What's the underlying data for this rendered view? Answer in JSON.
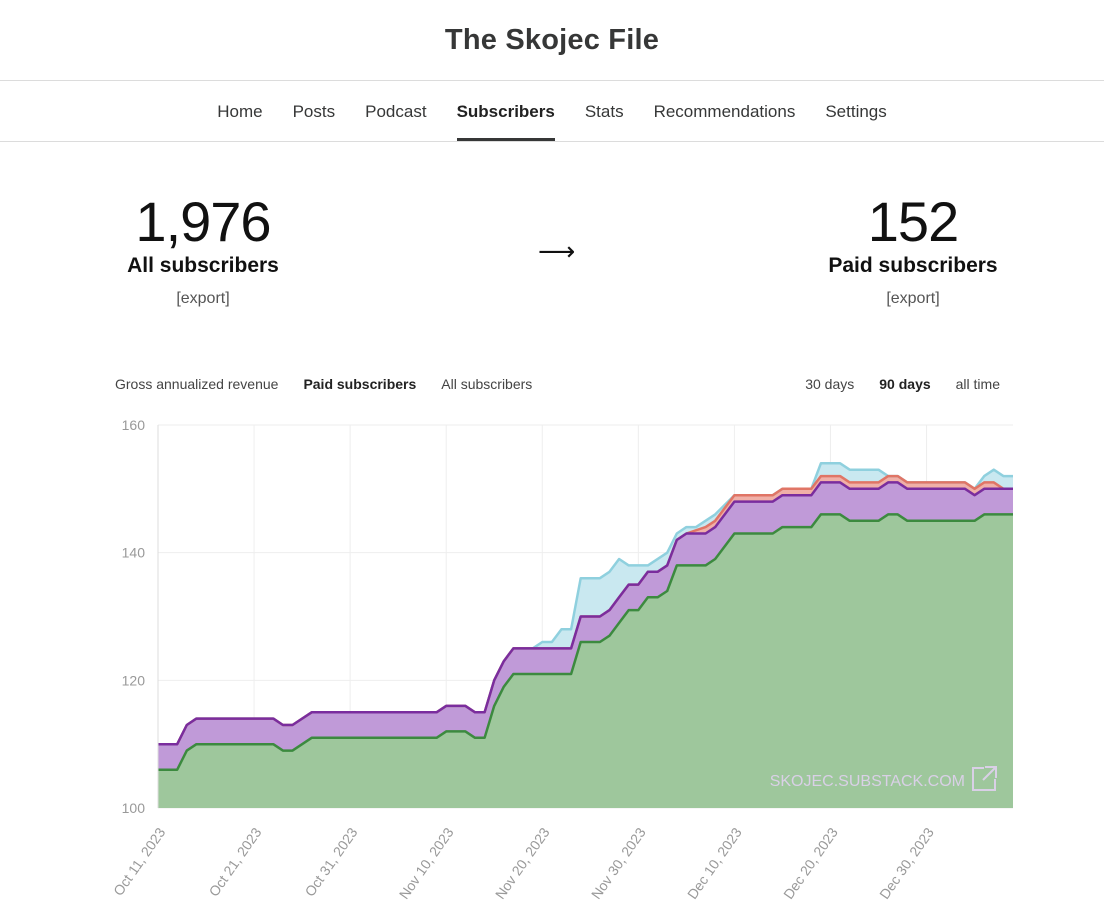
{
  "header": {
    "title": "The Skojec File"
  },
  "nav": {
    "items": [
      {
        "label": "Home",
        "active": false
      },
      {
        "label": "Posts",
        "active": false
      },
      {
        "label": "Podcast",
        "active": false
      },
      {
        "label": "Subscribers",
        "active": true
      },
      {
        "label": "Stats",
        "active": false
      },
      {
        "label": "Recommendations",
        "active": false
      },
      {
        "label": "Settings",
        "active": false
      }
    ]
  },
  "summary": {
    "all": {
      "value": "1,976",
      "label": "All subscribers",
      "export": "[export]"
    },
    "arrow": "⟶",
    "paid": {
      "value": "152",
      "label": "Paid subscribers",
      "export": "[export]"
    }
  },
  "metric_tabs": [
    {
      "label": "Gross annualized revenue",
      "active": false
    },
    {
      "label": "Paid subscribers",
      "active": true
    },
    {
      "label": "All subscribers",
      "active": false
    }
  ],
  "range_tabs": [
    {
      "label": "30 days",
      "active": false
    },
    {
      "label": "90 days",
      "active": true
    },
    {
      "label": "all time",
      "active": false
    }
  ],
  "colors": {
    "green_fill": "#9ec79c",
    "green_line": "#3c8a3f",
    "purple_fill": "#c09ad8",
    "purple_line": "#7a2d9e",
    "red_fill": "#f0b0a8",
    "red_line": "#e07566",
    "blue_fill": "#c9e8f0",
    "blue_line": "#8fd0de"
  },
  "chart_data": {
    "type": "area",
    "stacked": true,
    "ylim": [
      100,
      160
    ],
    "yticks": [
      100,
      120,
      140,
      160
    ],
    "grid": true,
    "xtick_labels": [
      "Oct 11, 2023",
      "Oct 21, 2023",
      "Oct 31, 2023",
      "Nov 10, 2023",
      "Nov 20, 2023",
      "Nov 30, 2023",
      "Dec 10, 2023",
      "Dec 20, 2023",
      "Dec 30, 2023"
    ],
    "x_start": "2023-10-11",
    "x_end": "2024-01-08",
    "watermark": "SKOJEC.SUBSTACK.COM",
    "layer_tops": [
      {
        "color": "green",
        "points": [
          [
            "2023-10-11",
            106
          ],
          [
            "2023-10-13",
            106
          ],
          [
            "2023-10-14",
            109
          ],
          [
            "2023-10-15",
            110
          ],
          [
            "2023-10-23",
            110
          ],
          [
            "2023-10-24",
            109
          ],
          [
            "2023-10-25",
            109
          ],
          [
            "2023-10-27",
            111
          ],
          [
            "2023-11-09",
            111
          ],
          [
            "2023-11-10",
            112
          ],
          [
            "2023-11-12",
            112
          ],
          [
            "2023-11-13",
            111
          ],
          [
            "2023-11-14",
            111
          ],
          [
            "2023-11-15",
            116
          ],
          [
            "2023-11-16",
            119
          ],
          [
            "2023-11-17",
            121
          ],
          [
            "2023-11-23",
            121
          ],
          [
            "2023-11-24",
            126
          ],
          [
            "2023-11-26",
            126
          ],
          [
            "2023-11-27",
            127
          ],
          [
            "2023-11-28",
            129
          ],
          [
            "2023-11-29",
            131
          ],
          [
            "2023-11-30",
            131
          ],
          [
            "2023-12-01",
            133
          ],
          [
            "2023-12-02",
            133
          ],
          [
            "2023-12-03",
            134
          ],
          [
            "2023-12-04",
            138
          ],
          [
            "2023-12-07",
            138
          ],
          [
            "2023-12-08",
            139
          ],
          [
            "2023-12-10",
            143
          ],
          [
            "2023-12-14",
            143
          ],
          [
            "2023-12-15",
            144
          ],
          [
            "2023-12-18",
            144
          ],
          [
            "2023-12-19",
            146
          ],
          [
            "2023-12-21",
            146
          ],
          [
            "2023-12-22",
            145
          ],
          [
            "2023-12-25",
            145
          ],
          [
            "2023-12-26",
            146
          ],
          [
            "2023-12-27",
            146
          ],
          [
            "2023-12-28",
            145
          ],
          [
            "2024-01-04",
            145
          ],
          [
            "2024-01-05",
            146
          ],
          [
            "2024-01-08",
            146
          ]
        ]
      },
      {
        "color": "purple",
        "points": [
          [
            "2023-10-11",
            110
          ],
          [
            "2023-10-13",
            110
          ],
          [
            "2023-10-14",
            113
          ],
          [
            "2023-10-15",
            114
          ],
          [
            "2023-10-23",
            114
          ],
          [
            "2023-10-24",
            113
          ],
          [
            "2023-10-25",
            113
          ],
          [
            "2023-10-27",
            115
          ],
          [
            "2023-11-09",
            115
          ],
          [
            "2023-11-10",
            116
          ],
          [
            "2023-11-12",
            116
          ],
          [
            "2023-11-13",
            115
          ],
          [
            "2023-11-14",
            115
          ],
          [
            "2023-11-15",
            120
          ],
          [
            "2023-11-16",
            123
          ],
          [
            "2023-11-17",
            125
          ],
          [
            "2023-11-23",
            125
          ],
          [
            "2023-11-24",
            130
          ],
          [
            "2023-11-26",
            130
          ],
          [
            "2023-11-27",
            131
          ],
          [
            "2023-11-28",
            133
          ],
          [
            "2023-11-29",
            135
          ],
          [
            "2023-11-30",
            135
          ],
          [
            "2023-12-01",
            137
          ],
          [
            "2023-12-02",
            137
          ],
          [
            "2023-12-03",
            138
          ],
          [
            "2023-12-04",
            142
          ],
          [
            "2023-12-05",
            143
          ],
          [
            "2023-12-07",
            143
          ],
          [
            "2023-12-08",
            144
          ],
          [
            "2023-12-10",
            148
          ],
          [
            "2023-12-14",
            148
          ],
          [
            "2023-12-15",
            149
          ],
          [
            "2023-12-18",
            149
          ],
          [
            "2023-12-19",
            151
          ],
          [
            "2023-12-21",
            151
          ],
          [
            "2023-12-22",
            150
          ],
          [
            "2023-12-25",
            150
          ],
          [
            "2023-12-26",
            151
          ],
          [
            "2023-12-27",
            151
          ],
          [
            "2023-12-28",
            150
          ],
          [
            "2024-01-03",
            150
          ],
          [
            "2024-01-04",
            149
          ],
          [
            "2024-01-05",
            150
          ],
          [
            "2024-01-08",
            150
          ]
        ]
      },
      {
        "color": "red",
        "points": [
          [
            "2023-10-11",
            110
          ],
          [
            "2023-10-13",
            110
          ],
          [
            "2023-10-14",
            113
          ],
          [
            "2023-10-15",
            114
          ],
          [
            "2023-10-23",
            114
          ],
          [
            "2023-10-24",
            113
          ],
          [
            "2023-10-25",
            113
          ],
          [
            "2023-10-27",
            115
          ],
          [
            "2023-11-09",
            115
          ],
          [
            "2023-11-10",
            116
          ],
          [
            "2023-11-12",
            116
          ],
          [
            "2023-11-13",
            115
          ],
          [
            "2023-11-14",
            115
          ],
          [
            "2023-11-15",
            120
          ],
          [
            "2023-11-16",
            123
          ],
          [
            "2023-11-17",
            125
          ],
          [
            "2023-11-23",
            125
          ],
          [
            "2023-11-24",
            130
          ],
          [
            "2023-11-26",
            130
          ],
          [
            "2023-11-27",
            131
          ],
          [
            "2023-11-28",
            133
          ],
          [
            "2023-11-29",
            135
          ],
          [
            "2023-11-30",
            135
          ],
          [
            "2023-12-01",
            137
          ],
          [
            "2023-12-02",
            137
          ],
          [
            "2023-12-03",
            138
          ],
          [
            "2023-12-04",
            142
          ],
          [
            "2023-12-05",
            143
          ],
          [
            "2023-12-07",
            144
          ],
          [
            "2023-12-08",
            145
          ],
          [
            "2023-12-10",
            149
          ],
          [
            "2023-12-14",
            149
          ],
          [
            "2023-12-15",
            150
          ],
          [
            "2023-12-18",
            150
          ],
          [
            "2023-12-19",
            152
          ],
          [
            "2023-12-21",
            152
          ],
          [
            "2023-12-22",
            151
          ],
          [
            "2023-12-25",
            151
          ],
          [
            "2023-12-26",
            152
          ],
          [
            "2023-12-27",
            152
          ],
          [
            "2023-12-28",
            151
          ],
          [
            "2024-01-03",
            151
          ],
          [
            "2024-01-04",
            150
          ],
          [
            "2024-01-05",
            151
          ],
          [
            "2024-01-06",
            151
          ],
          [
            "2024-01-07",
            150
          ],
          [
            "2024-01-08",
            150
          ]
        ]
      },
      {
        "color": "blue",
        "points": [
          [
            "2023-10-11",
            110
          ],
          [
            "2023-10-13",
            110
          ],
          [
            "2023-10-14",
            113
          ],
          [
            "2023-10-15",
            114
          ],
          [
            "2023-10-23",
            114
          ],
          [
            "2023-10-24",
            113
          ],
          [
            "2023-10-25",
            113
          ],
          [
            "2023-10-27",
            115
          ],
          [
            "2023-11-09",
            115
          ],
          [
            "2023-11-10",
            116
          ],
          [
            "2023-11-12",
            116
          ],
          [
            "2023-11-13",
            115
          ],
          [
            "2023-11-14",
            115
          ],
          [
            "2023-11-15",
            120
          ],
          [
            "2023-11-16",
            123
          ],
          [
            "2023-11-17",
            125
          ],
          [
            "2023-11-19",
            125
          ],
          [
            "2023-11-20",
            126
          ],
          [
            "2023-11-21",
            126
          ],
          [
            "2023-11-22",
            128
          ],
          [
            "2023-11-23",
            128
          ],
          [
            "2023-11-24",
            136
          ],
          [
            "2023-11-26",
            136
          ],
          [
            "2023-11-27",
            137
          ],
          [
            "2023-11-28",
            139
          ],
          [
            "2023-11-29",
            138
          ],
          [
            "2023-12-01",
            138
          ],
          [
            "2023-12-03",
            140
          ],
          [
            "2023-12-04",
            143
          ],
          [
            "2023-12-05",
            144
          ],
          [
            "2023-12-06",
            144
          ],
          [
            "2023-12-08",
            146
          ],
          [
            "2023-12-10",
            149
          ],
          [
            "2023-12-14",
            149
          ],
          [
            "2023-12-15",
            150
          ],
          [
            "2023-12-18",
            150
          ],
          [
            "2023-12-19",
            154
          ],
          [
            "2023-12-21",
            154
          ],
          [
            "2023-12-22",
            153
          ],
          [
            "2023-12-25",
            153
          ],
          [
            "2023-12-26",
            152
          ],
          [
            "2023-12-27",
            152
          ],
          [
            "2023-12-28",
            151
          ],
          [
            "2024-01-03",
            151
          ],
          [
            "2024-01-04",
            150
          ],
          [
            "2024-01-05",
            152
          ],
          [
            "2024-01-06",
            153
          ],
          [
            "2024-01-07",
            152
          ],
          [
            "2024-01-08",
            152
          ]
        ]
      }
    ]
  }
}
